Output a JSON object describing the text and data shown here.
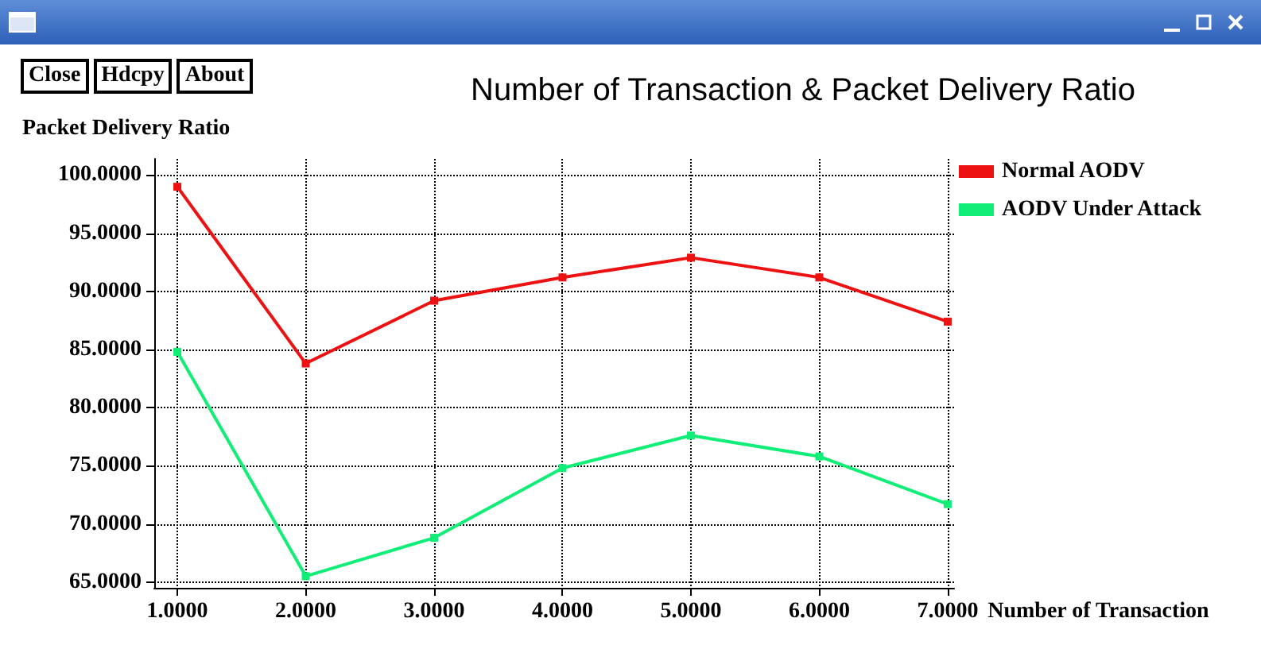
{
  "chart_data": {
    "type": "line",
    "title": "Number of Transaction & Packet Delivery Ratio",
    "xlabel": "Number of Transaction",
    "ylabel": "Packet Delivery Ratio",
    "annotations": [
      "Close",
      "Hdcpy",
      "About"
    ],
    "x": [
      1,
      2,
      3,
      4,
      5,
      6,
      7
    ],
    "series": [
      {
        "name": "Normal AODV",
        "color": "#ee1111",
        "values": [
          99.0,
          83.8,
          89.2,
          91.2,
          92.9,
          91.2,
          87.4
        ]
      },
      {
        "name": "AODV Under Attack",
        "color": "#11ee77",
        "values": [
          84.8,
          65.5,
          68.8,
          74.8,
          77.6,
          75.8,
          71.7
        ]
      }
    ],
    "xlim": [
      0.82,
      7.05
    ],
    "xticks": [
      {
        "value": 1,
        "label": "1.0000"
      },
      {
        "value": 2,
        "label": "2.0000"
      },
      {
        "value": 3,
        "label": "3.0000"
      },
      {
        "value": 4,
        "label": "4.0000"
      },
      {
        "value": 5,
        "label": "5.0000"
      },
      {
        "value": 6,
        "label": "6.0000"
      },
      {
        "value": 7,
        "label": "7.0000"
      }
    ],
    "ylim": [
      64.5,
      101.4
    ],
    "yticks": [
      {
        "value": 65,
        "label": "65.0000"
      },
      {
        "value": 70,
        "label": "70.0000"
      },
      {
        "value": 75,
        "label": "75.0000"
      },
      {
        "value": 80,
        "label": "80.0000"
      },
      {
        "value": 85,
        "label": "85.0000"
      },
      {
        "value": 90,
        "label": "90.0000"
      },
      {
        "value": 95,
        "label": "95.0000"
      },
      {
        "value": 100,
        "label": "100.0000"
      }
    ],
    "grid": true,
    "legend": "top right",
    "marker": "square",
    "line_style": "solid"
  }
}
